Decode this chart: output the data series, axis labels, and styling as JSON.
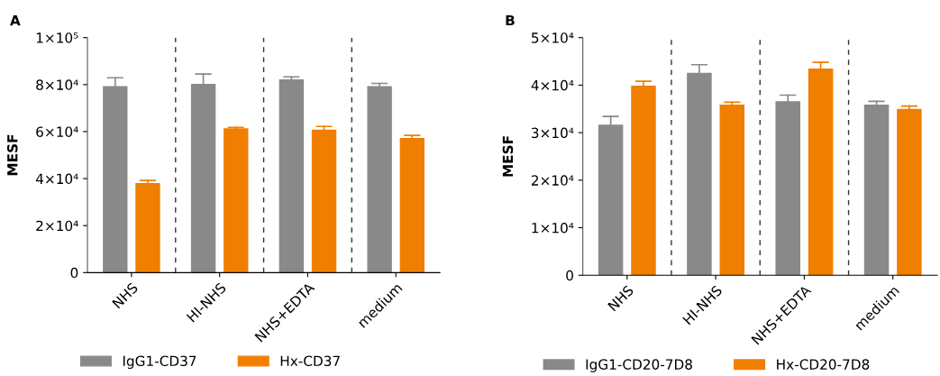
{
  "chart_data": [
    {
      "type": "bar",
      "title": "A",
      "ylabel": "MESF",
      "categories": [
        "NHS",
        "HI-NHS",
        "NHS+EDTA",
        "medium"
      ],
      "series": [
        {
          "name": "IgG1-CD37",
          "color": "#898989",
          "values": [
            79400,
            80300,
            82200,
            79400
          ],
          "errors": [
            [
              79400,
              82900
            ],
            [
              80300,
              84500
            ],
            [
              82200,
              83300
            ],
            [
              79400,
              80500
            ]
          ]
        },
        {
          "name": "Hx-CD37",
          "color": "#f07f00",
          "values": [
            38100,
            61400,
            60800,
            57300
          ],
          "errors": [
            [
              38100,
              39200
            ],
            [
              61400,
              61800
            ],
            [
              60800,
              62200
            ],
            [
              57300,
              58400
            ]
          ]
        }
      ],
      "ylim": [
        0,
        100000
      ],
      "yticks": [
        0,
        {
          "value": 20000,
          "label": "2×10⁴"
        },
        {
          "value": 40000,
          "label": "4×10⁴"
        },
        {
          "value": 60000,
          "label": "6×10⁴"
        },
        {
          "value": 80000,
          "label": "8×10⁴"
        },
        {
          "value": 100000,
          "label": "1×10⁵"
        }
      ],
      "grid": false,
      "legend": "bottom"
    },
    {
      "type": "bar",
      "title": "B",
      "ylabel": "MESF",
      "categories": [
        "NHS",
        "HI-NHS",
        "NHS+EDTA",
        "medium"
      ],
      "series": [
        {
          "name": "IgG1-CD20-7D8",
          "color": "#898989",
          "values": [
            31700,
            42600,
            36600,
            35900
          ],
          "errors": [
            [
              31700,
              33400
            ],
            [
              42600,
              44300
            ],
            [
              36600,
              37900
            ],
            [
              35900,
              36600
            ]
          ]
        },
        {
          "name": "Hx-CD20-7D8",
          "color": "#f07f00",
          "values": [
            39900,
            35900,
            43500,
            35000
          ],
          "errors": [
            [
              39900,
              40800
            ],
            [
              35900,
              36400
            ],
            [
              43500,
              44800
            ],
            [
              35000,
              35600
            ]
          ]
        }
      ],
      "ylim": [
        0,
        50000
      ],
      "yticks": [
        0,
        {
          "value": 10000,
          "label": "1×10⁴"
        },
        {
          "value": 20000,
          "label": "2×10⁴"
        },
        {
          "value": 30000,
          "label": "3×10⁴"
        },
        {
          "value": 40000,
          "label": "4×10⁴"
        },
        {
          "value": 50000,
          "label": "5×10⁴"
        }
      ],
      "grid": false,
      "legend": "bottom"
    }
  ]
}
